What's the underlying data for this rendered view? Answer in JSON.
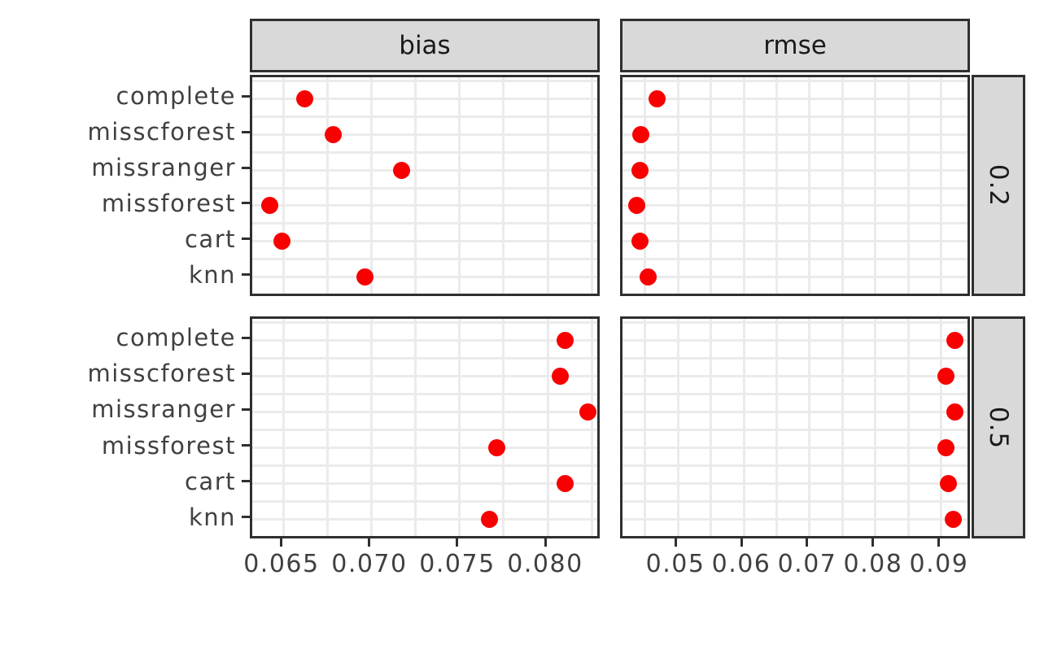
{
  "chart_data": {
    "type": "scatter",
    "description": "Faceted dot plot of imputation method performance; columns are metrics, rows are missingness proportions",
    "facet_cols": [
      "bias",
      "rmse"
    ],
    "facet_rows": [
      "0.2",
      "0.5"
    ],
    "categories_top_to_bottom": [
      "complete",
      "misscforest",
      "missranger",
      "missforest",
      "cart",
      "knn"
    ],
    "series": [
      {
        "facet_col": "bias",
        "facet_row": "0.2",
        "values": [
          0.0662,
          0.0678,
          0.0717,
          0.0642,
          0.0649,
          0.0696
        ]
      },
      {
        "facet_col": "rmse",
        "facet_row": "0.2",
        "values": [
          0.0468,
          0.0444,
          0.0442,
          0.0437,
          0.0442,
          0.0455
        ]
      },
      {
        "facet_col": "bias",
        "facet_row": "0.5",
        "values": [
          0.081,
          0.0807,
          0.0823,
          0.0771,
          0.081,
          0.0767
        ]
      },
      {
        "facet_col": "rmse",
        "facet_row": "0.5",
        "values": [
          0.0921,
          0.0907,
          0.0921,
          0.0907,
          0.091,
          0.0918
        ]
      }
    ],
    "x_axes": {
      "bias": {
        "domain": [
          0.0632,
          0.0831
        ],
        "ticks": [
          0.065,
          0.07,
          0.075,
          0.08
        ],
        "tick_labels": [
          "0.065",
          "0.070",
          "0.075",
          "0.080"
        ],
        "minor_ticks": [
          0.0675,
          0.0725,
          0.0775,
          0.0825
        ]
      },
      "rmse": {
        "domain": [
          0.0416,
          0.0947
        ],
        "ticks": [
          0.05,
          0.06,
          0.07,
          0.08,
          0.09
        ],
        "tick_labels": [
          "0.05",
          "0.06",
          "0.07",
          "0.08",
          "0.09"
        ],
        "minor_ticks": [
          0.045,
          0.055,
          0.065,
          0.075,
          0.085
        ]
      }
    },
    "y_axis": {
      "positions_top_to_bottom": [
        6,
        5,
        4,
        3,
        2,
        1
      ],
      "domain": [
        0.4,
        6.6
      ],
      "grid": true
    },
    "legend": "none",
    "title": "",
    "colors": {
      "point": "#f80000",
      "grid": "#ebebeb",
      "panel_border": "#2f2f2f",
      "strip_bg": "#d9d9d9",
      "axis_text": "#404040",
      "strip_text": "#1a1a1a"
    }
  }
}
